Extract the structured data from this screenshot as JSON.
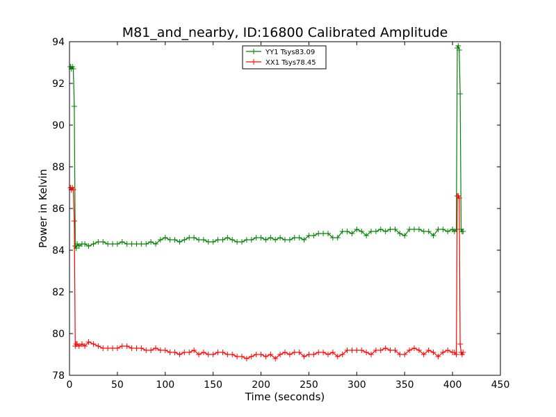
{
  "chart_data": {
    "type": "line",
    "title": "M81_and_nearby, ID:16800 Calibrated Amplitude",
    "xlabel": "Time (seconds)",
    "ylabel": "Power in Kelvin",
    "xlim": [
      0,
      450
    ],
    "ylim": [
      78,
      94
    ],
    "xticks": [
      "0",
      "50",
      "100",
      "150",
      "200",
      "250",
      "300",
      "350",
      "400",
      "450"
    ],
    "yticks": [
      "78",
      "80",
      "82",
      "84",
      "86",
      "88",
      "90",
      "92",
      "94"
    ],
    "grid": false,
    "legend_position": "top-center",
    "series": [
      {
        "name": "YY1 Tsys83.09",
        "color": "#008000",
        "marker": "+",
        "x": [
          1,
          2,
          3,
          4,
          5,
          6,
          7,
          8,
          10,
          13,
          16,
          20,
          25,
          30,
          35,
          40,
          45,
          50,
          55,
          60,
          65,
          70,
          75,
          80,
          85,
          90,
          95,
          100,
          105,
          110,
          115,
          120,
          125,
          130,
          135,
          140,
          145,
          150,
          155,
          160,
          165,
          170,
          175,
          180,
          185,
          190,
          195,
          200,
          205,
          210,
          215,
          220,
          225,
          230,
          235,
          240,
          245,
          250,
          255,
          260,
          265,
          270,
          275,
          280,
          285,
          290,
          295,
          300,
          305,
          310,
          315,
          320,
          325,
          330,
          335,
          340,
          345,
          350,
          355,
          360,
          365,
          370,
          375,
          380,
          385,
          390,
          395,
          400,
          402,
          404,
          405,
          406,
          407,
          408,
          409,
          410,
          411
        ],
        "y": [
          92.8,
          92.7,
          92.8,
          92.7,
          90.9,
          84.2,
          84.1,
          84.3,
          84.2,
          84.3,
          84.3,
          84.2,
          84.3,
          84.4,
          84.4,
          84.3,
          84.3,
          84.3,
          84.4,
          84.3,
          84.3,
          84.3,
          84.3,
          84.3,
          84.4,
          84.3,
          84.5,
          84.6,
          84.5,
          84.5,
          84.4,
          84.5,
          84.6,
          84.6,
          84.5,
          84.5,
          84.4,
          84.4,
          84.5,
          84.5,
          84.6,
          84.5,
          84.4,
          84.4,
          84.5,
          84.5,
          84.6,
          84.6,
          84.5,
          84.6,
          84.5,
          84.6,
          84.5,
          84.5,
          84.6,
          84.6,
          84.5,
          84.7,
          84.7,
          84.8,
          84.8,
          84.8,
          84.6,
          84.6,
          84.9,
          84.9,
          84.8,
          85.0,
          84.9,
          84.7,
          84.9,
          84.9,
          85.0,
          84.9,
          85.0,
          85.0,
          84.8,
          84.7,
          85.0,
          85.0,
          85.0,
          84.9,
          84.9,
          84.7,
          85.0,
          85.0,
          84.9,
          85.0,
          84.9,
          85.0,
          93.7,
          93.8,
          93.6,
          91.5,
          85.0,
          84.9,
          84.9
        ]
      },
      {
        "name": "XX1 Tsys78.45",
        "color": "#ff0000",
        "marker": "+",
        "x": [
          1,
          2,
          3,
          4,
          5,
          6,
          7,
          8,
          10,
          13,
          16,
          20,
          25,
          30,
          35,
          40,
          45,
          50,
          55,
          60,
          65,
          70,
          75,
          80,
          85,
          90,
          95,
          100,
          105,
          110,
          115,
          120,
          125,
          130,
          135,
          140,
          145,
          150,
          155,
          160,
          165,
          170,
          175,
          180,
          185,
          190,
          195,
          200,
          205,
          210,
          215,
          220,
          225,
          230,
          235,
          240,
          245,
          250,
          255,
          260,
          265,
          270,
          275,
          280,
          285,
          290,
          295,
          300,
          305,
          310,
          315,
          320,
          325,
          330,
          335,
          340,
          345,
          350,
          355,
          360,
          365,
          370,
          375,
          380,
          385,
          390,
          395,
          400,
          402,
          404,
          405,
          406,
          407,
          408,
          409,
          410,
          411
        ],
        "y": [
          87.0,
          86.9,
          87.0,
          86.9,
          85.4,
          79.4,
          79.5,
          79.5,
          79.4,
          79.5,
          79.4,
          79.6,
          79.5,
          79.4,
          79.3,
          79.3,
          79.3,
          79.3,
          79.4,
          79.4,
          79.3,
          79.3,
          79.3,
          79.2,
          79.2,
          79.3,
          79.2,
          79.2,
          79.1,
          79.1,
          79.0,
          79.1,
          79.1,
          79.2,
          79.0,
          79.1,
          79.0,
          79.0,
          79.1,
          79.1,
          79.0,
          79.0,
          78.9,
          78.9,
          78.8,
          78.9,
          79.0,
          79.0,
          78.9,
          79.0,
          78.8,
          79.0,
          79.1,
          79.0,
          79.1,
          79.1,
          78.9,
          79.0,
          79.0,
          79.1,
          79.1,
          79.0,
          79.1,
          78.9,
          79.0,
          79.2,
          79.2,
          79.2,
          79.2,
          79.1,
          79.0,
          79.2,
          79.2,
          79.3,
          79.2,
          79.2,
          79.0,
          79.0,
          79.2,
          79.3,
          79.2,
          79.0,
          79.2,
          79.1,
          78.9,
          79.1,
          79.2,
          79.1,
          79.1,
          79.0,
          86.6,
          86.6,
          86.5,
          79.5,
          79.1,
          79.0,
          79.1
        ]
      }
    ]
  }
}
